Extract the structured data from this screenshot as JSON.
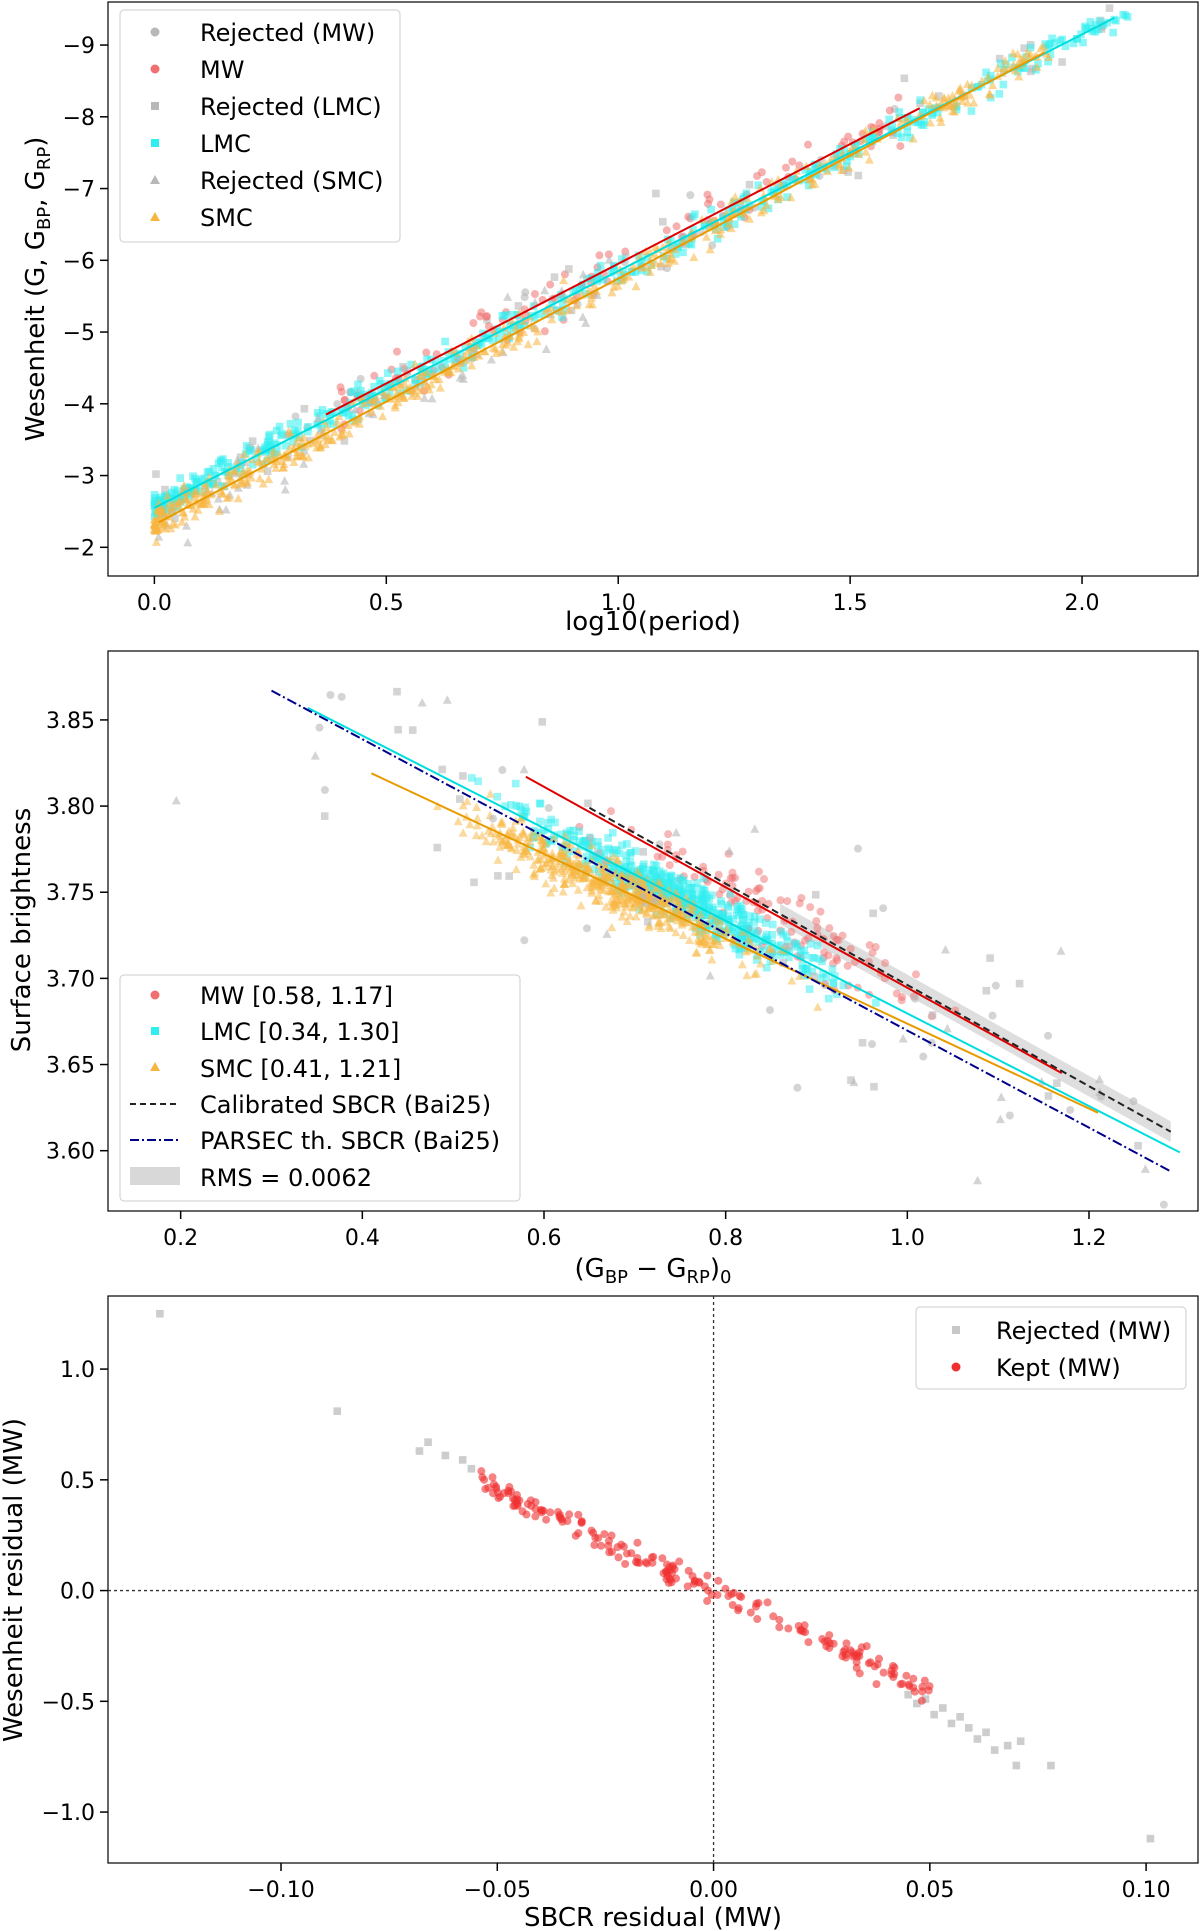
{
  "chart_data": [
    {
      "type": "scatter",
      "title": "",
      "xlabel": "log10(period)",
      "ylabel_main": "Wesenheit (G, G",
      "ylabel_sub1": "BP",
      "ylabel_sep": ", G",
      "ylabel_sub2": "RP",
      "ylabel_end": ")",
      "xlim": [
        -0.1,
        2.25
      ],
      "ylim": [
        -1.6,
        -9.6
      ],
      "y_inverted": true,
      "xticks": [
        0.0,
        0.5,
        1.0,
        1.5,
        2.0
      ],
      "xtick_labels": [
        "0.0",
        "0.5",
        "1.0",
        "1.5",
        "2.0"
      ],
      "yticks": [
        -9,
        -8,
        -7,
        -6,
        -5,
        -4,
        -3,
        -2
      ],
      "ytick_labels": [
        "−9",
        "−8",
        "−7",
        "−6",
        "−5",
        "−4",
        "−3",
        "−2"
      ],
      "grid": false,
      "legend_position": "top-left",
      "legend": [
        "Rejected (MW)",
        "MW",
        "Rejected (LMC)",
        "LMC",
        "Rejected (SMC)",
        "SMC"
      ],
      "series": [
        {
          "name": "Rejected (MW)",
          "marker": "circle",
          "color": "#b8b8b8",
          "generated": true,
          "x_range": [
            0.3,
            1.6
          ],
          "count": 35,
          "spread": 0.45
        },
        {
          "name": "MW",
          "marker": "circle",
          "color": "#f07070",
          "generated": true,
          "x_range": [
            0.4,
            1.65
          ],
          "count": 110,
          "spread": 0.3
        },
        {
          "name": "Rejected (LMC)",
          "marker": "square",
          "color": "#b8b8b8",
          "generated": true,
          "x_range": [
            0.0,
            2.13
          ],
          "count": 50,
          "spread": 0.45
        },
        {
          "name": "LMC",
          "marker": "square",
          "color": "#30eef0",
          "generated": true,
          "x_range": [
            0.0,
            2.1
          ],
          "count": 500,
          "spread": 0.18
        },
        {
          "name": "Rejected (SMC)",
          "marker": "triangle",
          "color": "#b8b8b8",
          "generated": true,
          "x_range": [
            0.0,
            1.0
          ],
          "count": 60,
          "spread": 0.45
        },
        {
          "name": "SMC",
          "marker": "triangle",
          "color": "#f7b540",
          "generated": true,
          "x_range": [
            0.0,
            1.93
          ],
          "count": 520,
          "spread": 0.2
        }
      ],
      "fit_lines": [
        {
          "name": "MW",
          "color": "#dd0000",
          "x": [
            0.37,
            1.65
          ],
          "y": [
            -3.85,
            -8.12
          ]
        },
        {
          "name": "LMC",
          "color": "#00dddd",
          "x": [
            0.0,
            2.07
          ],
          "y": [
            -2.55,
            -9.38
          ]
        },
        {
          "name": "SMC",
          "color": "#e89b00",
          "x": [
            0.01,
            1.92
          ],
          "y": [
            -2.35,
            -8.9
          ]
        }
      ]
    },
    {
      "type": "scatter",
      "title": "",
      "xlabel_main": "(G",
      "xlabel_sub1": "BP",
      "xlabel_sep": " − G",
      "xlabel_sub2": "RP",
      "xlabel_end": ")",
      "xlabel_sub3": "0",
      "ylabel": "Surface brightness",
      "xlim": [
        0.12,
        1.32
      ],
      "ylim": [
        3.565,
        3.89
      ],
      "xticks": [
        0.2,
        0.4,
        0.6,
        0.8,
        1.0,
        1.2
      ],
      "xtick_labels": [
        "0.2",
        "0.4",
        "0.6",
        "0.8",
        "1.0",
        "1.2"
      ],
      "yticks": [
        3.6,
        3.65,
        3.7,
        3.75,
        3.8,
        3.85
      ],
      "ytick_labels": [
        "3.60",
        "3.65",
        "3.70",
        "3.75",
        "3.80",
        "3.85"
      ],
      "grid": false,
      "legend_position": "lower-left",
      "legend": [
        "MW [0.58, 1.17]",
        "LMC [0.34, 1.30]",
        "SMC [0.41, 1.21]",
        "Calibrated SBCR (Bai25)",
        "PARSEC th. SBCR (Bai25)",
        "RMS = 0.0062"
      ],
      "series": [
        {
          "name": "MW",
          "marker": "circle",
          "color": "#f07070",
          "generated": true,
          "x_range": [
            0.58,
            1.17
          ],
          "count": 110,
          "spread": 0.018
        },
        {
          "name": "LMC",
          "marker": "square",
          "color": "#30eef0",
          "generated": true,
          "x_range": [
            0.34,
            1.3
          ],
          "count": 520,
          "spread": 0.012
        },
        {
          "name": "SMC",
          "marker": "triangle",
          "color": "#f7b540",
          "generated": true,
          "x_range": [
            0.41,
            1.21
          ],
          "count": 520,
          "spread": 0.013
        },
        {
          "name": "Rejected",
          "marker": "mixed",
          "color": "#b8b8b8",
          "generated": true,
          "x_range": [
            0.17,
            1.3
          ],
          "count": 90,
          "spread": 0.06
        }
      ],
      "fit_lines": [
        {
          "name": "MW",
          "color": "#dd0000",
          "x": [
            0.58,
            1.17
          ],
          "y": [
            3.817,
            3.645
          ]
        },
        {
          "name": "LMC",
          "color": "#00dddd",
          "x": [
            0.34,
            1.3
          ],
          "y": [
            3.857,
            3.599
          ]
        },
        {
          "name": "SMC",
          "color": "#e89b00",
          "x": [
            0.41,
            1.21
          ],
          "y": [
            3.819,
            3.622
          ]
        }
      ],
      "reference_lines": [
        {
          "name": "Calibrated SBCR (Bai25)",
          "style": "dashed",
          "color": "#222222",
          "x": [
            0.65,
            1.29
          ],
          "y": [
            3.799,
            3.611
          ]
        },
        {
          "name": "PARSEC th. SBCR (Bai25)",
          "style": "dashdot",
          "color": "#00008b",
          "x": [
            0.3,
            1.29
          ],
          "y": [
            3.867,
            3.588
          ]
        }
      ],
      "rms": 0.0062
    },
    {
      "type": "scatter",
      "title": "",
      "xlabel": "SBCR residual (MW)",
      "ylabel": "Wesenheit residual (MW)",
      "xlim": [
        -0.14,
        0.112
      ],
      "ylim": [
        -1.23,
        1.33
      ],
      "xticks": [
        -0.1,
        -0.05,
        0.0,
        0.05,
        0.1
      ],
      "xtick_labels": [
        "−0.10",
        "−0.05",
        "0.00",
        "0.05",
        "0.10"
      ],
      "yticks": [
        -1.0,
        -0.5,
        0.0,
        0.5,
        1.0
      ],
      "ytick_labels": [
        "−1.0",
        "−0.5",
        "0.0",
        "0.5",
        "1.0"
      ],
      "grid": false,
      "reference_lines": [
        {
          "orientation": "vertical",
          "value": 0.0,
          "style": "dotted"
        },
        {
          "orientation": "horizontal",
          "value": 0.0,
          "style": "dotted"
        }
      ],
      "legend_position": "top-right",
      "legend": [
        "Rejected (MW)",
        "Kept (MW)"
      ],
      "series": [
        {
          "name": "Rejected (MW)",
          "marker": "square",
          "color": "#c8c8c8",
          "x": [
            -0.128,
            -0.087,
            -0.068,
            -0.066,
            -0.062,
            -0.058,
            -0.056,
            0.045,
            0.047,
            0.049,
            0.051,
            0.053,
            0.055,
            0.057,
            0.059,
            0.061,
            0.063,
            0.065,
            0.068,
            0.07,
            0.071,
            0.078,
            0.101
          ],
          "y": [
            1.25,
            0.81,
            0.63,
            0.67,
            0.61,
            0.59,
            0.55,
            -0.47,
            -0.51,
            -0.49,
            -0.56,
            -0.53,
            -0.6,
            -0.57,
            -0.62,
            -0.67,
            -0.64,
            -0.72,
            -0.7,
            -0.79,
            -0.68,
            -0.79,
            -1.12
          ]
        },
        {
          "name": "Kept (MW)",
          "marker": "circle",
          "color": "#f03030",
          "generated": true,
          "x_range": [
            -0.055,
            0.05
          ],
          "count": 200,
          "slope": -9.2,
          "spread": 0.05
        }
      ]
    }
  ]
}
